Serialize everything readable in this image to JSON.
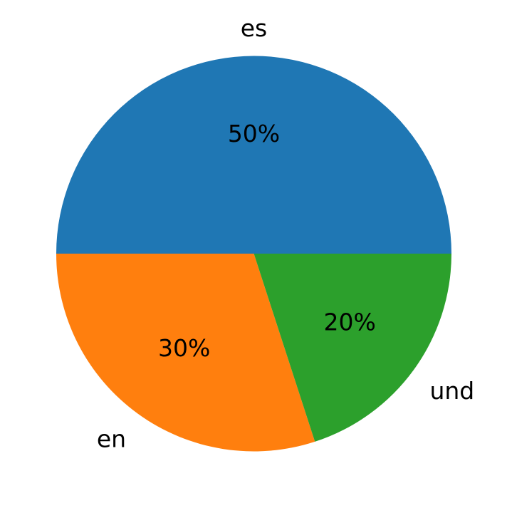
{
  "chart_data": {
    "type": "pie",
    "slices": [
      {
        "label": "es",
        "value": 50,
        "pct_label": "50%",
        "color": "#1f77b4"
      },
      {
        "label": "en",
        "value": 30,
        "pct_label": "30%",
        "color": "#ff7f0e"
      },
      {
        "label": "und",
        "value": 20,
        "pct_label": "20%",
        "color": "#2ca02c"
      }
    ],
    "start_angle_deg": 0,
    "direction": "counterclockwise"
  }
}
